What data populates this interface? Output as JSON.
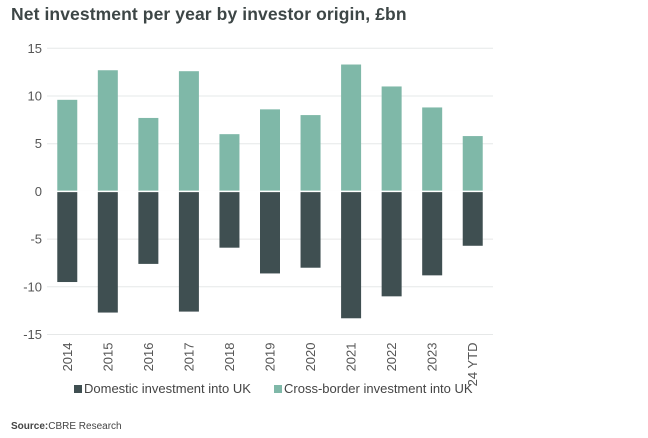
{
  "chart_data": {
    "type": "bar",
    "title": "Net investment per year by investor origin, £bn",
    "categories": [
      "2014",
      "2015",
      "2016",
      "2017",
      "2018",
      "2019",
      "2020",
      "2021",
      "2022",
      "2023",
      "24 YTD"
    ],
    "series": [
      {
        "name": "Domestic investment into UK",
        "color": "#3f4f51",
        "values": [
          -9.5,
          -12.7,
          -7.6,
          -12.6,
          -5.9,
          -8.6,
          -8.0,
          -13.3,
          -11.0,
          -8.8,
          -5.7
        ]
      },
      {
        "name": "Cross-border investment into UK",
        "color": "#7fb8a8",
        "values": [
          9.6,
          12.7,
          7.7,
          12.6,
          6.0,
          8.6,
          8.0,
          13.3,
          11.0,
          8.8,
          5.8
        ]
      }
    ],
    "ylim": [
      -15,
      15
    ],
    "yticks": [
      "15",
      "10",
      "5",
      "0",
      "-5",
      "-10",
      "-15"
    ],
    "ytick_values": [
      15,
      10,
      5,
      0,
      -5,
      -10,
      -15
    ],
    "grid": true,
    "legend": "bottom",
    "xlabel": "",
    "ylabel": ""
  },
  "source": {
    "label": "Source:",
    "text": "CBRE Research"
  }
}
